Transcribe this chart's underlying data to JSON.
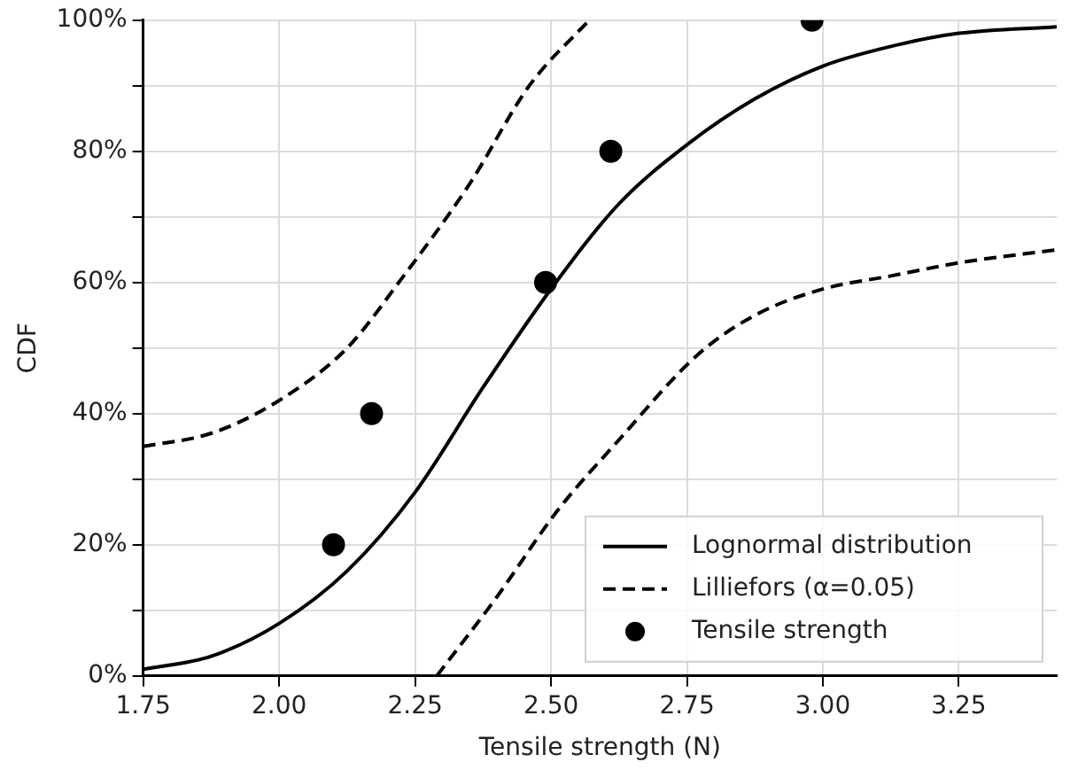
{
  "chart_data": {
    "type": "line",
    "xlabel": "Tensile strength (N)",
    "ylabel": "CDF",
    "xlim": [
      1.75,
      3.43
    ],
    "xticks": [
      {
        "value": 1.75,
        "label": "1.75"
      },
      {
        "value": 2.0,
        "label": "2.00"
      },
      {
        "value": 2.25,
        "label": "2.25"
      },
      {
        "value": 2.5,
        "label": "2.50"
      },
      {
        "value": 2.75,
        "label": "2.75"
      },
      {
        "value": 3.0,
        "label": "3.00"
      },
      {
        "value": 3.25,
        "label": "3.25"
      }
    ],
    "ylim": [
      0,
      100
    ],
    "yticks": [
      {
        "value": 0,
        "label": "0%"
      },
      {
        "value": 10,
        "label": null
      },
      {
        "value": 20,
        "label": "20%"
      },
      {
        "value": 30,
        "label": null
      },
      {
        "value": 40,
        "label": "40%"
      },
      {
        "value": 50,
        "label": null
      },
      {
        "value": 60,
        "label": "60%"
      },
      {
        "value": 70,
        "label": null
      },
      {
        "value": 80,
        "label": "80%"
      },
      {
        "value": 90,
        "label": null
      },
      {
        "value": 100,
        "label": "100%"
      }
    ],
    "grid": true,
    "legend": "bottom right",
    "series": [
      {
        "name": "Lognormal distribution",
        "type": "line",
        "color": "#000000",
        "line_style": "solid",
        "marker": "none",
        "x": [
          1.75,
          1.875,
          2.0,
          2.125,
          2.25,
          2.375,
          2.5,
          2.625,
          2.75,
          2.875,
          3.0,
          3.125,
          3.25,
          3.43
        ],
        "values": [
          1,
          3,
          8,
          16,
          28,
          44,
          59,
          72,
          81,
          88,
          93,
          96,
          98,
          99
        ]
      },
      {
        "name": "Lilliefors (α=0.05)",
        "type": "line",
        "color": "#000000",
        "line_style": "dashed",
        "marker": "none",
        "x": [
          1.75,
          1.875,
          2.0,
          2.125,
          2.22,
          2.35,
          2.46,
          2.57
        ],
        "values": [
          35,
          37,
          42,
          50,
          60,
          75,
          90,
          100
        ]
      },
      {
        "type": "line",
        "color": "#000000",
        "line_style": "dashed",
        "marker": "none",
        "x": [
          2.29,
          2.4,
          2.51,
          2.625,
          2.77,
          2.875,
          3.0,
          3.125,
          3.25,
          3.43
        ],
        "values": [
          0,
          12,
          25,
          36,
          49,
          55,
          59,
          61,
          63,
          65
        ]
      },
      {
        "name": "Tensile strength",
        "type": "scatter",
        "color": "#000000",
        "marker": "circle",
        "x": [
          2.1,
          2.17,
          2.49,
          2.61,
          2.98
        ],
        "values": [
          20,
          40,
          60,
          80,
          100
        ]
      }
    ]
  }
}
